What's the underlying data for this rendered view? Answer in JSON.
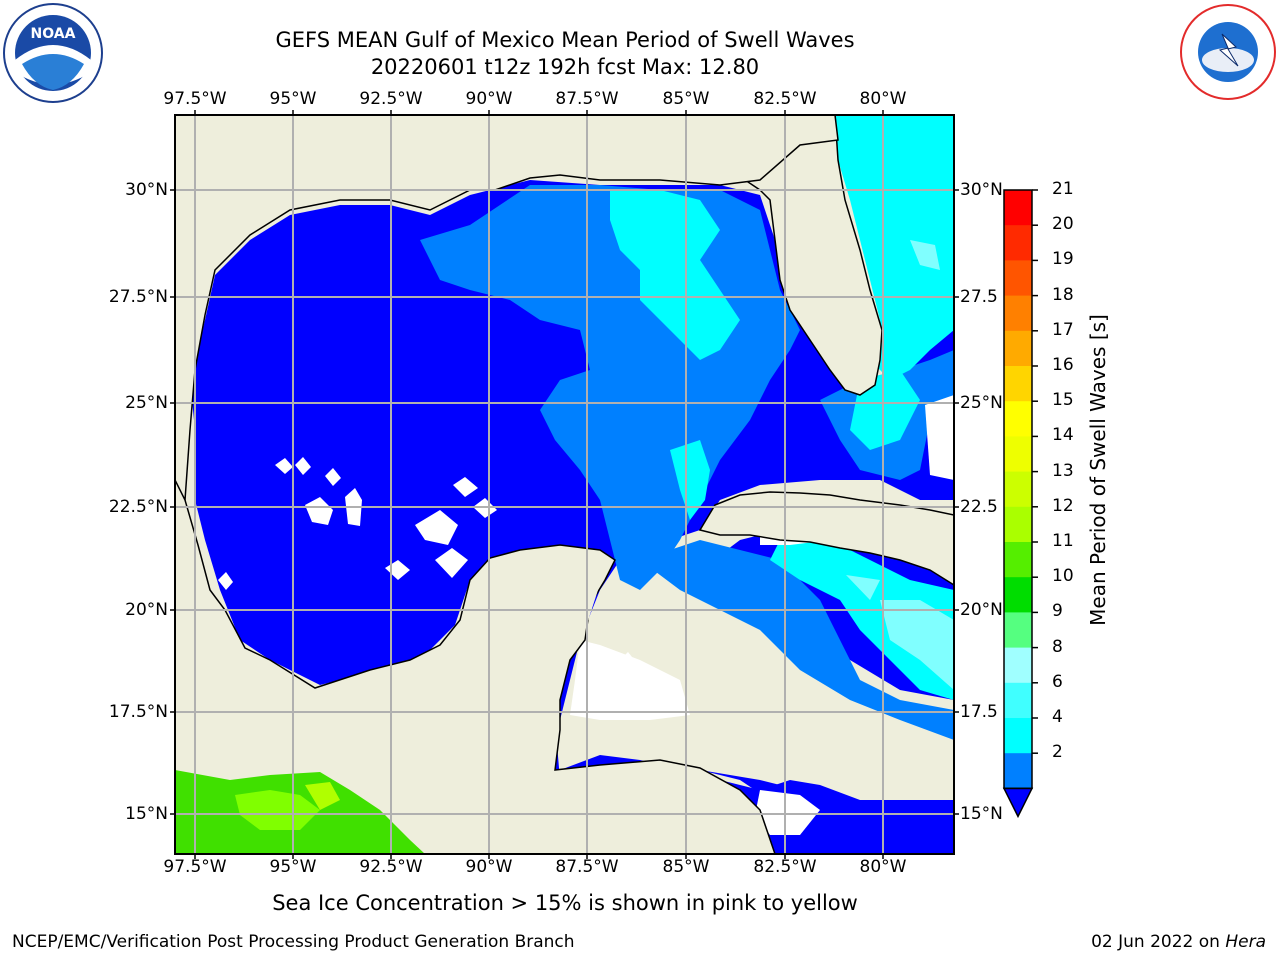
{
  "title": {
    "line1": "GEFS MEAN Gulf of Mexico Mean Period of Swell Waves",
    "line2": "20220601 t12z 192h fcst   Max: 12.80"
  },
  "map": {
    "lon_labels": [
      "97.5°W",
      "95°W",
      "92.5°W",
      "90°W",
      "87.5°W",
      "85°W",
      "82.5°W",
      "80°W"
    ],
    "lat_labels_left": [
      "30°N",
      "27.5°N",
      "25°N",
      "22.5°N",
      "20°N",
      "17.5°N",
      "15°N"
    ],
    "lat_labels_right": [
      "30°N",
      "27.5",
      "25°N",
      "22.5",
      "20°N",
      "17.5",
      "15°N"
    ],
    "colors": {
      "land": "#eeeedc",
      "ocean_2_4": "#0000ff",
      "ocean_4_6": "#0080ff",
      "ocean_6_8": "#00ffff",
      "ocean_8_9": "#40ffff",
      "ice_green": "#40e000",
      "grid": "#b0b0b0"
    }
  },
  "colorbar": {
    "ticks": [
      "21",
      "20",
      "19",
      "18",
      "17",
      "16",
      "15",
      "14",
      "13",
      "12",
      "11",
      "10",
      "9",
      "8",
      "6",
      "4",
      "2"
    ],
    "colors": [
      "#ff0000",
      "#ff2a00",
      "#ff5500",
      "#ff8000",
      "#ffaa00",
      "#ffd500",
      "#ffff00",
      "#eeff00",
      "#ccff00",
      "#aaff00",
      "#55ee00",
      "#00dd00",
      "#55ff80",
      "#a0ffff",
      "#40ffff",
      "#00ffff",
      "#0080ff"
    ],
    "label": "Mean Period of Swell Waves [s]"
  },
  "note": "Sea Ice Concentration > 15% is shown in pink to yellow",
  "footer": {
    "left": "NCEP/EMC/Verification Post Processing Product Generation Branch",
    "right_prefix": "02 Jun 2022 on ",
    "right_machine": "Hera"
  },
  "logos": {
    "left": "noara-logo-icon",
    "right": "nws-logo-icon"
  }
}
